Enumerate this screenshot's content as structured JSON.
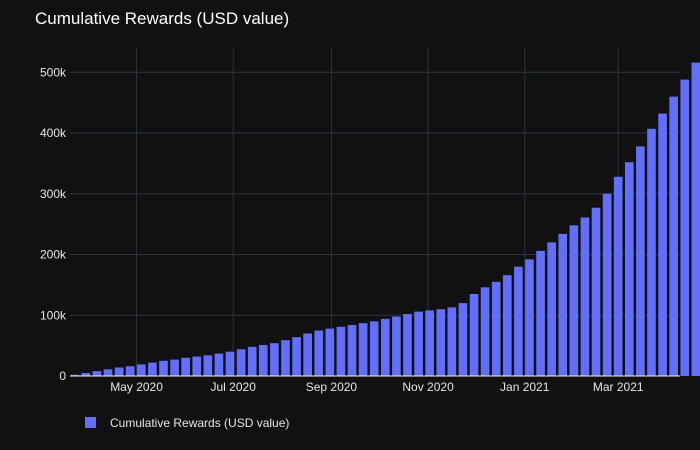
{
  "chart_data": {
    "type": "bar",
    "title": "Cumulative Rewards (USD value)",
    "xlabel": "",
    "ylabel": "",
    "x_start": "2020-03-23",
    "x_step_days": 7,
    "x_range": [
      "2020-03-20",
      "2021-04-09"
    ],
    "ylim": [
      0,
      540000
    ],
    "y_ticks": [
      0,
      100000,
      200000,
      300000,
      400000,
      500000
    ],
    "y_tick_labels": [
      "0",
      "100k",
      "200k",
      "300k",
      "400k",
      "500k"
    ],
    "x_ticks": [
      "2020-05-01",
      "2020-07-01",
      "2020-09-01",
      "2020-11-01",
      "2021-01-01",
      "2021-03-01"
    ],
    "x_tick_labels": [
      "May 2020",
      "Jul 2020",
      "Sep 2020",
      "Nov 2020",
      "Jan 2021",
      "Mar 2021"
    ],
    "grid": true,
    "legend_position": "bottom-left",
    "series": [
      {
        "name": "Cumulative Rewards (USD value)",
        "color": "#636efa",
        "values": [
          2000,
          5000,
          8000,
          11000,
          14000,
          16000,
          19000,
          22000,
          25000,
          27000,
          30000,
          32000,
          34000,
          37000,
          40000,
          44000,
          48000,
          51000,
          54000,
          59000,
          64000,
          70000,
          75000,
          78000,
          81000,
          84000,
          87000,
          90000,
          94000,
          98000,
          102000,
          106000,
          108000,
          110000,
          113000,
          120000,
          135000,
          146000,
          155000,
          166000,
          180000,
          192000,
          206000,
          220000,
          234000,
          248000,
          261000,
          277000,
          300000,
          328000,
          352000,
          378000,
          407000,
          432000,
          460000,
          488000,
          516000
        ]
      }
    ]
  }
}
